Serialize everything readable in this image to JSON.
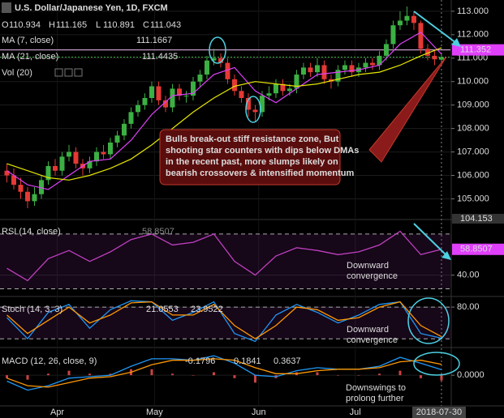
{
  "chart_data": [
    {
      "type": "candlestick",
      "title": "U.S. Dollar/Japanese Yen, 1D, FXCM",
      "ohlc_labels": [
        "O",
        "H",
        "L",
        "C"
      ],
      "open": [
        106.2,
        106.0,
        105.6,
        105.3,
        104.9,
        105.2,
        105.8,
        106.4,
        106.2,
        106.8,
        107.0,
        106.5,
        106.3,
        106.6,
        107.0,
        106.9,
        107.4,
        107.7,
        108.2,
        108.7,
        109.0,
        109.3,
        109.8,
        109.2,
        108.9,
        109.7,
        109.4,
        109.4,
        110.0,
        110.3,
        110.9,
        111.0,
        110.8,
        110.1,
        109.6,
        109.3,
        108.8,
        108.7,
        109.4,
        109.5,
        109.9,
        109.6,
        109.7,
        110.3,
        110.6,
        110.4,
        110.7,
        110.1,
        110.0,
        110.5,
        110.7,
        110.4,
        110.6,
        110.8,
        110.7,
        111.1,
        111.6,
        112.4,
        112.6,
        112.8,
        112.5,
        111.4,
        111.1,
        110.934
      ],
      "high": [
        106.5,
        106.3,
        105.9,
        105.5,
        105.5,
        106.0,
        106.6,
        106.7,
        107.0,
        107.3,
        107.2,
        106.7,
        106.8,
        107.2,
        107.3,
        107.6,
        107.9,
        108.4,
        108.9,
        109.2,
        109.5,
        110.0,
        110.0,
        109.4,
        109.9,
        109.9,
        109.6,
        110.2,
        110.5,
        111.1,
        111.4,
        111.2,
        111.0,
        110.3,
        109.8,
        109.5,
        109.0,
        109.6,
        109.8,
        110.1,
        110.1,
        109.9,
        110.5,
        110.8,
        110.8,
        111.0,
        110.9,
        110.3,
        110.7,
        110.9,
        110.9,
        110.8,
        111.0,
        111.0,
        111.3,
        111.8,
        112.6,
        113.0,
        113.2,
        113.0,
        112.6,
        111.6,
        111.3,
        111.165
      ],
      "low": [
        105.7,
        105.4,
        105.0,
        104.6,
        104.7,
        105.0,
        105.6,
        106.0,
        106.0,
        106.6,
        106.3,
        106.0,
        106.1,
        106.4,
        106.7,
        106.7,
        107.2,
        107.5,
        108.0,
        108.5,
        108.8,
        109.1,
        109.0,
        108.7,
        108.7,
        109.2,
        109.1,
        109.2,
        109.8,
        110.1,
        110.7,
        110.6,
        109.9,
        109.4,
        109.1,
        108.5,
        108.3,
        108.5,
        109.2,
        109.3,
        109.4,
        109.4,
        109.5,
        110.1,
        110.2,
        110.2,
        109.9,
        109.7,
        109.8,
        110.3,
        110.2,
        110.2,
        110.4,
        110.5,
        110.5,
        110.9,
        111.4,
        112.2,
        112.4,
        112.2,
        111.2,
        110.9,
        110.7,
        110.891
      ],
      "close": [
        106.0,
        105.6,
        105.3,
        104.9,
        105.2,
        105.8,
        106.4,
        106.2,
        106.8,
        107.0,
        106.5,
        106.3,
        106.6,
        107.0,
        106.9,
        107.4,
        107.7,
        108.2,
        108.7,
        109.0,
        109.3,
        109.8,
        109.2,
        108.9,
        109.7,
        109.4,
        109.4,
        110.0,
        110.3,
        110.9,
        111.0,
        110.8,
        110.1,
        109.6,
        109.3,
        108.8,
        108.7,
        109.4,
        109.5,
        109.9,
        109.6,
        109.7,
        110.3,
        110.6,
        110.4,
        110.7,
        110.1,
        110.0,
        110.5,
        110.7,
        110.4,
        110.6,
        110.8,
        110.7,
        111.1,
        111.6,
        112.4,
        112.6,
        112.8,
        112.5,
        111.4,
        111.1,
        110.95,
        111.043
      ],
      "up_color": "#3cb043",
      "down_color": "#e53935",
      "series": [
        {
          "name": "MA (7, close)",
          "color": "#e040fb",
          "x": [
            0,
            3,
            6,
            9,
            12,
            15,
            18,
            21,
            24,
            27,
            30,
            33,
            36,
            39,
            42,
            45,
            48,
            51,
            54,
            57,
            60,
            63
          ],
          "values": [
            106.2,
            105.6,
            105.4,
            106.0,
            106.6,
            106.7,
            107.5,
            108.6,
            109.4,
            109.5,
            110.3,
            110.6,
            109.6,
            109.1,
            109.7,
            110.3,
            110.4,
            110.5,
            110.7,
            111.6,
            112.1,
            111.1667
          ]
        },
        {
          "name": "MA (21, close)",
          "color": "#e6e600",
          "x": [
            0,
            3,
            6,
            9,
            12,
            15,
            18,
            21,
            24,
            27,
            30,
            33,
            36,
            39,
            42,
            45,
            48,
            51,
            54,
            57,
            60,
            63
          ],
          "values": [
            106.5,
            106.2,
            105.9,
            105.8,
            106.0,
            106.3,
            106.7,
            107.3,
            108.0,
            108.7,
            109.3,
            109.8,
            110.0,
            109.9,
            109.8,
            109.9,
            110.1,
            110.3,
            110.4,
            110.7,
            111.1,
            111.4435
          ]
        }
      ],
      "volume_label": "Vol (20)",
      "marker_price": 111.352,
      "xlim": [
        -1,
        64.3
      ],
      "xticks": [
        {
          "value": 7.3,
          "label": "Apr"
        },
        {
          "value": 21.4,
          "label": "May"
        },
        {
          "value": 36.5,
          "label": "Jun"
        },
        {
          "value": 50.5,
          "label": "Jul"
        }
      ],
      "cursor": {
        "value": 63,
        "label": "2018-07-30"
      },
      "ylim": [
        104.153,
        113.41
      ],
      "yticks": [
        {
          "value": 105,
          "label": "105.000"
        },
        {
          "value": 106,
          "label": "106.000"
        },
        {
          "value": 107,
          "label": "107.000"
        },
        {
          "value": 108,
          "label": "108.000"
        },
        {
          "value": 109,
          "label": "109.000"
        },
        {
          "value": 110,
          "label": "110.000"
        },
        {
          "value": 111,
          "label": "111.000"
        },
        {
          "value": 112,
          "label": "112.000"
        },
        {
          "value": 113,
          "label": "113.000"
        }
      ],
      "annotation": [
        "Bulls break-out stiff resistance zone, But",
        "shooting star counters with dips below DMAs",
        "in the recent past, more slumps likely on",
        "bearish crossovers & intensified momentum"
      ]
    },
    {
      "type": "line",
      "title": "RSI (14, close)",
      "x": [
        0,
        3,
        6,
        9,
        12,
        15,
        18,
        21,
        24,
        27,
        30,
        33,
        36,
        39,
        42,
        45,
        48,
        51,
        54,
        57,
        60,
        63
      ],
      "series": [
        {
          "color": "#c040c0",
          "values": [
            45,
            36,
            52,
            58,
            50,
            57,
            66,
            70,
            62,
            64,
            70,
            50,
            40,
            54,
            60,
            58,
            55,
            57,
            62,
            72,
            55,
            58.8507
          ]
        }
      ],
      "levels": [
        70,
        30
      ],
      "ylim": [
        25,
        80
      ],
      "yticks": [
        {
          "value": 40,
          "label": "40.00"
        }
      ],
      "annotation": [
        "Downward",
        "convergence"
      ]
    },
    {
      "type": "line",
      "title": "Stoch (14, 3, 3)",
      "x": [
        0,
        3,
        6,
        9,
        12,
        15,
        18,
        21,
        24,
        27,
        30,
        33,
        36,
        39,
        42,
        45,
        48,
        51,
        54,
        57,
        60,
        63
      ],
      "series": [
        {
          "color": "#2196f3",
          "values": [
            60,
            20,
            70,
            85,
            40,
            75,
            92,
            90,
            55,
            70,
            90,
            30,
            15,
            65,
            85,
            70,
            50,
            65,
            85,
            90,
            30,
            21.0553
          ]
        },
        {
          "color": "#ff9800",
          "values": [
            65,
            30,
            55,
            80,
            50,
            65,
            88,
            90,
            65,
            65,
            85,
            45,
            20,
            45,
            80,
            75,
            55,
            60,
            80,
            90,
            45,
            23.9522
          ]
        }
      ],
      "levels": [
        80,
        20
      ],
      "ylim": [
        5,
        97
      ],
      "yticks": [
        {
          "value": 80,
          "label": "80.00"
        }
      ],
      "annotation": [
        "Downward",
        "convergence"
      ]
    },
    {
      "type": "macd",
      "title": "MACD (12, 26, close, 9)",
      "x": [
        0,
        3,
        6,
        9,
        12,
        15,
        18,
        21,
        24,
        27,
        30,
        33,
        36,
        39,
        42,
        45,
        48,
        51,
        54,
        57,
        60,
        63
      ],
      "series": [
        {
          "kind": "bar",
          "color": "#ff5252",
          "values": [
            -0.1,
            -0.15,
            0.05,
            0.15,
            0.05,
            0.05,
            0.2,
            0.2,
            0.05,
            0.0,
            0.1,
            -0.1,
            -0.25,
            -0.1,
            0.1,
            0.1,
            0.0,
            0.0,
            0.05,
            0.15,
            -0.1,
            -0.1796
          ]
        },
        {
          "kind": "line",
          "color": "#2196f3",
          "values": [
            -0.2,
            -0.5,
            -0.35,
            -0.1,
            -0.05,
            0.0,
            0.3,
            0.55,
            0.55,
            0.5,
            0.65,
            0.4,
            0.0,
            -0.05,
            0.15,
            0.25,
            0.2,
            0.2,
            0.3,
            0.6,
            0.4,
            0.1841
          ]
        },
        {
          "kind": "line",
          "color": "#ff9800",
          "values": [
            -0.1,
            -0.35,
            -0.4,
            -0.25,
            -0.1,
            -0.05,
            0.1,
            0.35,
            0.5,
            0.5,
            0.55,
            0.5,
            0.25,
            0.05,
            0.05,
            0.15,
            0.2,
            0.2,
            0.25,
            0.45,
            0.5,
            0.3637
          ]
        }
      ],
      "ylim": [
        -1.0,
        0.9
      ],
      "yticks": [
        {
          "value": 0,
          "label": "0.0000"
        }
      ],
      "annotation": [
        "Downswings to",
        "prolong further"
      ]
    }
  ]
}
